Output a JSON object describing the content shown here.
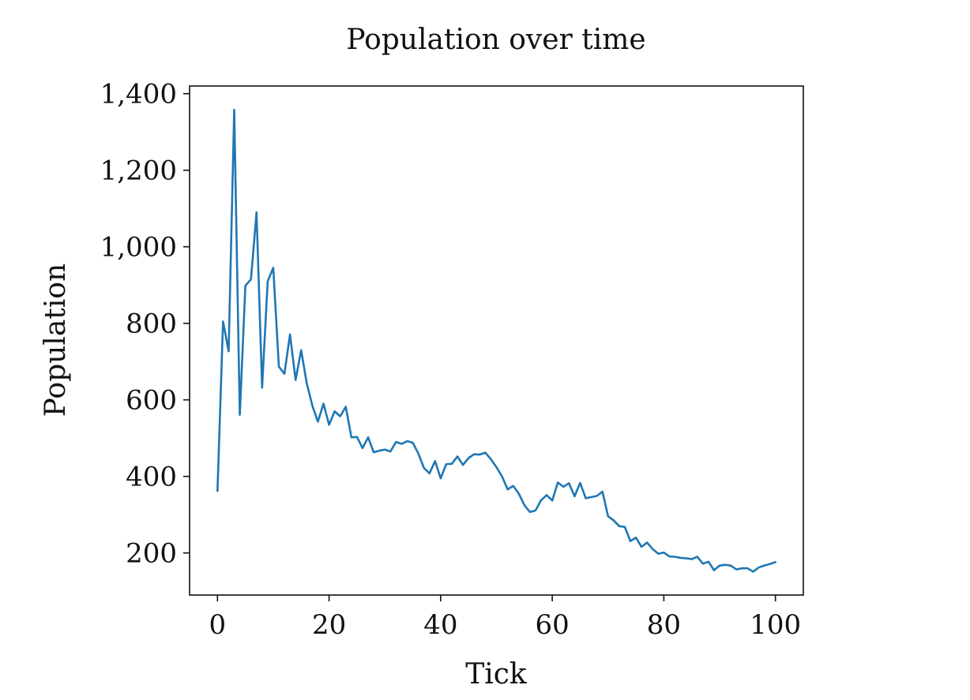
{
  "chart_data": {
    "type": "line",
    "title": "Population over time",
    "xlabel": "Tick",
    "ylabel": "Population",
    "xlim": [
      -5,
      105
    ],
    "ylim": [
      90,
      1420
    ],
    "x_ticks": [
      0,
      20,
      40,
      60,
      80,
      100
    ],
    "y_ticks": [
      200,
      400,
      600,
      800,
      1000,
      1200,
      1400
    ],
    "x_tick_labels": [
      "0",
      "20",
      "40",
      "60",
      "80",
      "100"
    ],
    "y_tick_labels": [
      "200",
      "400",
      "600",
      "800",
      "1,000",
      "1,200",
      "1,400"
    ],
    "grid": false,
    "legend": false,
    "line_color": "#1f77b4",
    "series": [
      {
        "x": [
          0,
          1,
          2,
          3,
          4,
          5,
          6,
          7,
          8,
          9,
          10,
          11,
          12,
          13,
          14,
          15,
          16,
          17,
          18,
          19,
          20,
          21,
          22,
          23,
          24,
          25,
          26,
          27,
          28,
          29,
          30,
          31,
          32,
          33,
          34,
          35,
          36,
          37,
          38,
          39,
          40,
          41,
          42,
          43,
          44,
          45,
          46,
          47,
          48,
          49,
          50,
          51,
          52,
          53,
          54,
          55,
          56,
          57,
          58,
          59,
          60,
          61,
          62,
          63,
          64,
          65,
          66,
          67,
          68,
          69,
          70,
          71,
          72,
          73,
          74,
          75,
          76,
          77,
          78,
          79,
          80,
          81,
          82,
          83,
          84,
          85,
          86,
          87,
          88,
          89,
          90,
          91,
          92,
          93,
          94,
          95,
          96,
          97,
          98,
          99,
          100
        ],
        "values": [
          362,
          805,
          727,
          1358,
          561,
          898,
          915,
          1090,
          632,
          910,
          945,
          687,
          668,
          771,
          652,
          730,
          643,
          585,
          543,
          590,
          535,
          570,
          557,
          582,
          502,
          503,
          474,
          502,
          463,
          467,
          470,
          465,
          490,
          485,
          492,
          488,
          460,
          422,
          408,
          440,
          395,
          432,
          433,
          452,
          430,
          448,
          458,
          457,
          462,
          445,
          424,
          400,
          366,
          375,
          355,
          325,
          307,
          311,
          338,
          351,
          337,
          384,
          373,
          382,
          348,
          383,
          343,
          346,
          349,
          360,
          296,
          285,
          270,
          268,
          231,
          240,
          216,
          227,
          210,
          198,
          201,
          191,
          190,
          187,
          186,
          184,
          190,
          172,
          177,
          155,
          167,
          169,
          167,
          157,
          160,
          160,
          151,
          162,
          167,
          171,
          176
        ]
      }
    ]
  }
}
